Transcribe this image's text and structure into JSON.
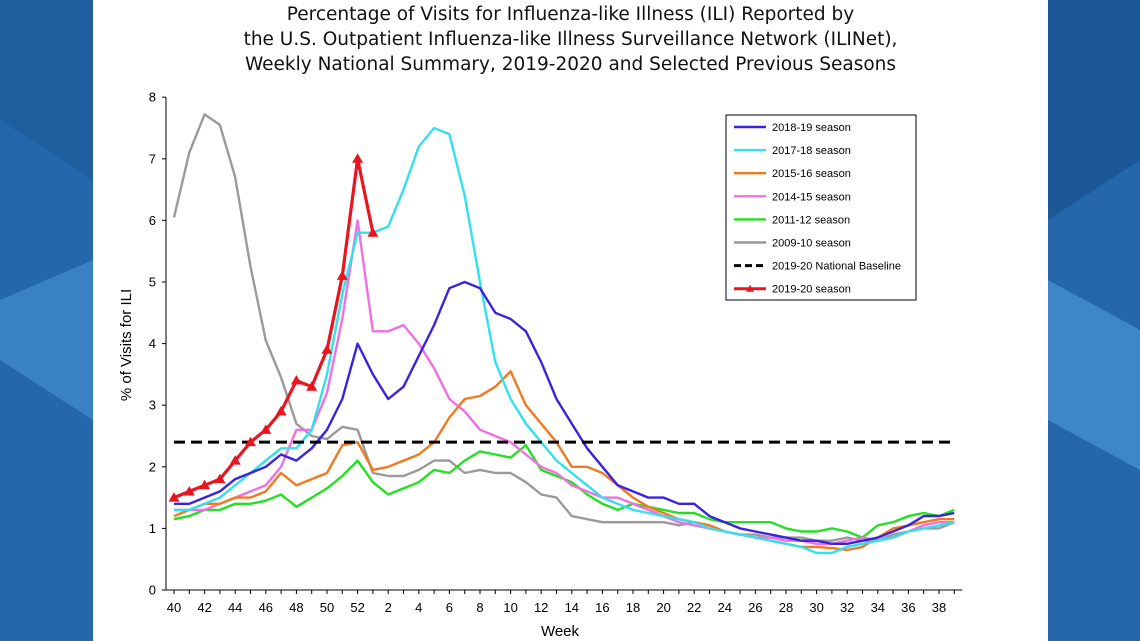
{
  "chart_data": {
    "type": "line",
    "title": [
      "Percentage of Visits for Influenza-like Illness (ILI) Reported by",
      "the U.S. Outpatient Influenza-like Illness Surveillance Network (ILINet),",
      "Weekly National Summary, 2019-2020 and Selected Previous Seasons"
    ],
    "xlabel": "Week",
    "ylabel": "% of Visits for ILI",
    "ylim": [
      0,
      8
    ],
    "yticks": [
      "0",
      "1",
      "2",
      "3",
      "4",
      "5",
      "6",
      "7",
      "8"
    ],
    "weeks": [
      40,
      41,
      42,
      43,
      44,
      45,
      46,
      47,
      48,
      49,
      50,
      51,
      52,
      1,
      2,
      3,
      4,
      5,
      6,
      7,
      8,
      9,
      10,
      11,
      12,
      13,
      14,
      15,
      16,
      17,
      18,
      19,
      20,
      21,
      22,
      23,
      24,
      25,
      26,
      27,
      28,
      29,
      30,
      31,
      32,
      33,
      34,
      35,
      36,
      37,
      38,
      39
    ],
    "xtick_labels": [
      "40",
      "42",
      "44",
      "46",
      "48",
      "50",
      "52",
      "2",
      "4",
      "6",
      "8",
      "10",
      "12",
      "14",
      "16",
      "18",
      "20",
      "22",
      "24",
      "26",
      "28",
      "30",
      "32",
      "34",
      "36",
      "38"
    ],
    "legend_position": "top-right",
    "series": [
      {
        "name": "2018-19 season",
        "color": "#3a22e0",
        "values": [
          1.4,
          1.4,
          1.5,
          1.6,
          1.8,
          1.9,
          2.0,
          2.2,
          2.1,
          2.3,
          2.6,
          3.1,
          4.0,
          3.5,
          3.1,
          3.3,
          3.8,
          4.3,
          4.9,
          5.0,
          4.9,
          4.5,
          4.4,
          4.2,
          3.7,
          3.1,
          2.7,
          2.3,
          2.0,
          1.7,
          1.6,
          1.5,
          1.5,
          1.4,
          1.4,
          1.2,
          1.1,
          1.0,
          0.95,
          0.9,
          0.85,
          0.8,
          0.8,
          0.75,
          0.75,
          0.8,
          0.85,
          0.95,
          1.05,
          1.2,
          1.2,
          1.25
        ]
      },
      {
        "name": "2017-18 season",
        "color": "#33e0f0",
        "values": [
          1.3,
          1.3,
          1.4,
          1.5,
          1.7,
          1.9,
          2.1,
          2.3,
          2.3,
          2.6,
          3.5,
          4.8,
          5.8,
          5.8,
          5.9,
          6.5,
          7.2,
          7.5,
          7.4,
          6.4,
          5.0,
          3.7,
          3.1,
          2.7,
          2.4,
          2.1,
          1.9,
          1.7,
          1.5,
          1.4,
          1.3,
          1.25,
          1.2,
          1.15,
          1.1,
          1.0,
          0.95,
          0.9,
          0.85,
          0.8,
          0.75,
          0.7,
          0.6,
          0.6,
          0.7,
          0.75,
          0.8,
          0.85,
          0.95,
          1.0,
          1.05,
          1.1
        ]
      },
      {
        "name": "2015-16 season",
        "color": "#f07a20",
        "values": [
          1.2,
          1.3,
          1.4,
          1.4,
          1.5,
          1.5,
          1.6,
          1.9,
          1.7,
          1.8,
          1.9,
          2.35,
          2.4,
          1.95,
          2.0,
          2.1,
          2.2,
          2.4,
          2.8,
          3.1,
          3.15,
          3.3,
          3.55,
          3.0,
          2.7,
          2.4,
          2.0,
          2.0,
          1.9,
          1.7,
          1.5,
          1.35,
          1.25,
          1.15,
          1.1,
          1.05,
          0.95,
          0.9,
          0.85,
          0.8,
          0.75,
          0.7,
          0.7,
          0.68,
          0.65,
          0.7,
          0.85,
          1.0,
          1.05,
          1.1,
          1.15,
          1.15
        ]
      },
      {
        "name": "2014-15 season",
        "color": "#f070e0",
        "values": [
          1.3,
          1.3,
          1.3,
          1.4,
          1.5,
          1.6,
          1.7,
          2.0,
          2.6,
          2.6,
          3.2,
          4.4,
          6.0,
          4.2,
          4.2,
          4.3,
          4.0,
          3.6,
          3.1,
          2.9,
          2.6,
          2.5,
          2.4,
          2.2,
          2.0,
          1.9,
          1.7,
          1.6,
          1.5,
          1.5,
          1.4,
          1.3,
          1.2,
          1.1,
          1.05,
          1.0,
          0.95,
          0.9,
          0.85,
          0.85,
          0.8,
          0.8,
          0.75,
          0.75,
          0.8,
          0.85,
          0.8,
          0.85,
          0.95,
          1.05,
          1.1,
          1.1
        ]
      },
      {
        "name": "2011-12 season",
        "color": "#22e022",
        "values": [
          1.15,
          1.2,
          1.3,
          1.3,
          1.4,
          1.4,
          1.45,
          1.55,
          1.35,
          1.5,
          1.65,
          1.85,
          2.1,
          1.75,
          1.55,
          1.65,
          1.75,
          1.95,
          1.9,
          2.1,
          2.25,
          2.2,
          2.15,
          2.35,
          1.95,
          1.85,
          1.75,
          1.55,
          1.4,
          1.3,
          1.4,
          1.35,
          1.3,
          1.25,
          1.25,
          1.15,
          1.1,
          1.1,
          1.1,
          1.1,
          1.0,
          0.95,
          0.95,
          1.0,
          0.95,
          0.85,
          1.05,
          1.1,
          1.2,
          1.25,
          1.2,
          1.3
        ]
      },
      {
        "name": "2009-10 season",
        "color": "#9a9a9a",
        "values": [
          6.05,
          7.1,
          7.72,
          7.55,
          6.7,
          5.25,
          4.05,
          3.45,
          2.7,
          2.5,
          2.45,
          2.65,
          2.6,
          1.9,
          1.85,
          1.85,
          1.95,
          2.1,
          2.1,
          1.9,
          1.95,
          1.9,
          1.9,
          1.75,
          1.55,
          1.5,
          1.2,
          1.15,
          1.1,
          1.1,
          1.1,
          1.1,
          1.1,
          1.05,
          1.1,
          1.05,
          0.95,
          0.9,
          0.9,
          0.85,
          0.85,
          0.85,
          0.8,
          0.8,
          0.85,
          0.8,
          0.8,
          0.9,
          0.95,
          1.0,
          1.0,
          1.1
        ]
      }
    ],
    "baseline": {
      "name": "2019-20 National Baseline",
      "color": "#000000",
      "value": 2.4
    },
    "current": {
      "name": "2019-20 season",
      "color": "#e8141e",
      "values": [
        1.5,
        1.6,
        1.7,
        1.8,
        2.1,
        2.4,
        2.6,
        2.9,
        3.4,
        3.3,
        3.9,
        5.1,
        7.0,
        5.8
      ]
    }
  }
}
